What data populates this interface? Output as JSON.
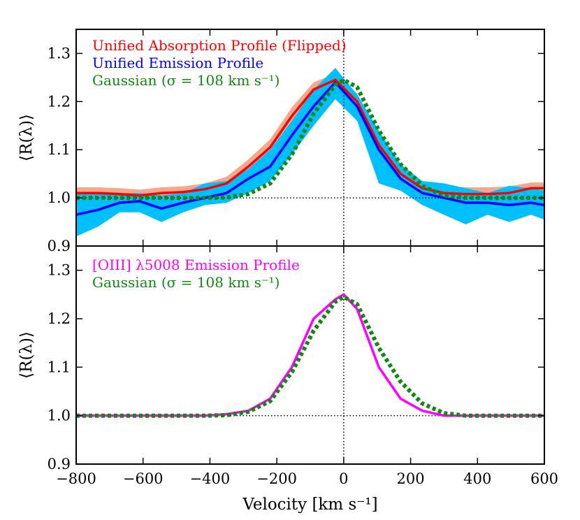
{
  "chart_data": [
    {
      "type": "line",
      "panel": "top",
      "xlim": [
        -800,
        600
      ],
      "ylim": [
        0.9,
        1.35
      ],
      "ylabel": "⟨R(λ)⟩",
      "yticks": [
        0.9,
        1.0,
        1.1,
        1.2,
        1.3
      ],
      "ytick_labels": [
        "0.9",
        "1.0",
        "1.1",
        "1.2",
        "1.3"
      ],
      "grid": false,
      "legend_position": "top-left",
      "reference_lines": {
        "y": 1.0,
        "x": 0
      },
      "series": [
        {
          "name": "Unified Absorption Profile (Flipped)",
          "color": "#ff0000",
          "band_color": "#f4a080",
          "x": [
            -800,
            -735,
            -670,
            -610,
            -545,
            -480,
            -415,
            -350,
            -285,
            -220,
            -155,
            -90,
            -25,
            40,
            105,
            170,
            235,
            300,
            365,
            430,
            495,
            560,
            600
          ],
          "values": [
            1.01,
            1.01,
            1.008,
            1.005,
            1.01,
            1.012,
            1.018,
            1.03,
            1.065,
            1.105,
            1.17,
            1.225,
            1.245,
            1.2,
            1.11,
            1.05,
            1.02,
            1.01,
            1.008,
            1.008,
            1.01,
            1.02,
            1.02
          ],
          "band_lower": [
            1.0,
            1.0,
            0.998,
            0.995,
            1.0,
            1.002,
            1.008,
            1.018,
            1.052,
            1.09,
            1.152,
            1.208,
            1.23,
            1.183,
            1.092,
            1.035,
            1.008,
            0.998,
            0.996,
            0.996,
            0.998,
            1.008,
            1.008
          ],
          "band_upper": [
            1.022,
            1.022,
            1.02,
            1.017,
            1.022,
            1.024,
            1.03,
            1.044,
            1.08,
            1.122,
            1.188,
            1.24,
            1.258,
            1.217,
            1.128,
            1.066,
            1.034,
            1.024,
            1.022,
            1.022,
            1.024,
            1.032,
            1.032
          ]
        },
        {
          "name": "Unified Emission Profile",
          "color": "#0000ff",
          "band_color": "#00bfff",
          "x": [
            -800,
            -735,
            -670,
            -610,
            -545,
            -480,
            -415,
            -350,
            -285,
            -220,
            -155,
            -90,
            -25,
            40,
            105,
            170,
            235,
            300,
            365,
            430,
            495,
            560,
            600
          ],
          "values": [
            0.965,
            0.975,
            0.99,
            0.993,
            0.978,
            0.99,
            1.0,
            1.01,
            1.04,
            1.065,
            1.13,
            1.19,
            1.24,
            1.19,
            1.1,
            1.04,
            1.01,
            1.0,
            0.99,
            0.99,
            0.985,
            0.99,
            0.985
          ],
          "band_lower": [
            0.92,
            0.94,
            0.97,
            0.97,
            0.95,
            0.97,
            0.985,
            0.99,
            1.01,
            1.035,
            1.09,
            1.15,
            1.205,
            1.16,
            1.03,
            1.015,
            0.985,
            0.965,
            0.945,
            0.965,
            0.95,
            0.965,
            0.955
          ],
          "band_upper": [
            1.01,
            1.01,
            1.01,
            1.01,
            1.005,
            1.01,
            1.03,
            1.035,
            1.06,
            1.1,
            1.16,
            1.225,
            1.27,
            1.215,
            1.14,
            1.07,
            1.035,
            1.03,
            1.02,
            1.01,
            1.025,
            1.02,
            1.015
          ]
        },
        {
          "name": "Gaussian (σ = 108 km s⁻¹)",
          "color": "#128712",
          "style": "dotted",
          "x": [
            -800,
            -735,
            -670,
            -610,
            -545,
            -480,
            -415,
            -350,
            -285,
            -220,
            -155,
            -90,
            -25,
            0,
            40,
            105,
            170,
            235,
            300,
            365,
            430,
            495,
            560,
            600
          ],
          "values": [
            1.0,
            1.0,
            1.0,
            1.0,
            1.0,
            1.0,
            1.0,
            1.001,
            1.008,
            1.03,
            1.09,
            1.175,
            1.235,
            1.245,
            1.23,
            1.14,
            1.07,
            1.025,
            1.005,
            1.0,
            1.0,
            1.0,
            1.0,
            1.0
          ]
        }
      ]
    },
    {
      "type": "line",
      "panel": "bottom",
      "xlim": [
        -800,
        600
      ],
      "ylim": [
        0.9,
        1.35
      ],
      "xlabel": "Velocity [km s⁻¹]",
      "ylabel": "⟨R(λ)⟩",
      "xticks": [
        -800,
        -600,
        -400,
        -200,
        0,
        200,
        400,
        600
      ],
      "xtick_labels": [
        "−800",
        "−600",
        "−400",
        "−200",
        "0",
        "200",
        "400",
        "600"
      ],
      "yticks": [
        0.9,
        1.0,
        1.1,
        1.2,
        1.3
      ],
      "ytick_labels": [
        "0.9",
        "1.0",
        "1.1",
        "1.2",
        "1.3"
      ],
      "grid": false,
      "legend_position": "top-left",
      "reference_lines": {
        "y": 1.0,
        "x": 0
      },
      "series": [
        {
          "name": "[OIII] λ5008 Emission Profile",
          "color": "#ff00ff",
          "x": [
            -800,
            -735,
            -670,
            -610,
            -545,
            -480,
            -415,
            -350,
            -285,
            -220,
            -155,
            -90,
            -25,
            0,
            40,
            105,
            170,
            235,
            300,
            365,
            430,
            495,
            560,
            600
          ],
          "values": [
            1.0,
            1.0,
            1.0,
            1.0,
            1.0,
            1.0,
            1.0,
            1.003,
            1.01,
            1.035,
            1.1,
            1.2,
            1.24,
            1.25,
            1.22,
            1.1,
            1.035,
            1.01,
            1.0,
            1.0,
            1.0,
            1.0,
            1.0,
            1.0
          ]
        },
        {
          "name": "Gaussian (σ = 108 km s⁻¹)",
          "color": "#128712",
          "style": "dotted",
          "x": [
            -800,
            -735,
            -670,
            -610,
            -545,
            -480,
            -415,
            -350,
            -285,
            -220,
            -155,
            -90,
            -25,
            0,
            40,
            105,
            170,
            235,
            300,
            365,
            430,
            495,
            560,
            600
          ],
          "values": [
            1.0,
            1.0,
            1.0,
            1.0,
            1.0,
            1.0,
            1.0,
            1.001,
            1.008,
            1.03,
            1.09,
            1.175,
            1.235,
            1.245,
            1.23,
            1.14,
            1.07,
            1.025,
            1.005,
            1.0,
            1.0,
            1.0,
            1.0,
            1.0
          ]
        }
      ]
    }
  ]
}
